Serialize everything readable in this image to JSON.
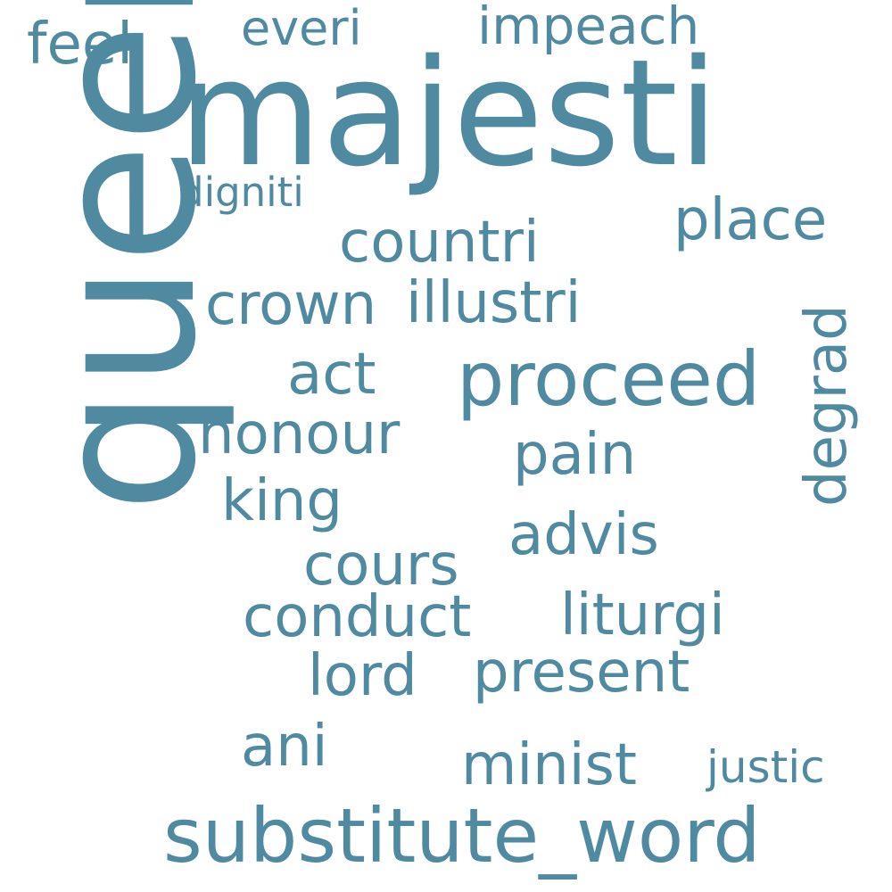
{
  "colors": {
    "background": "#ffffff",
    "word": "#4f8aa0"
  },
  "words": {
    "queen": "queen",
    "majesti": "majesti",
    "feel": "feel",
    "everi": "everi",
    "impeach": "impeach",
    "digniti": "digniti",
    "countri": "countri",
    "place": "place",
    "crown": "crown",
    "illustri": "illustri",
    "degrad": "degrad",
    "act": "act",
    "proceed": "proceed",
    "honour": "honour",
    "pain": "pain",
    "king": "king",
    "advis": "advis",
    "cours": "cours",
    "conduct": "conduct",
    "liturgi": "liturgi",
    "lord": "lord",
    "present": "present",
    "ani": "ani",
    "minist": "minist",
    "justic": "justic",
    "substitute_word": "substitute_word"
  }
}
